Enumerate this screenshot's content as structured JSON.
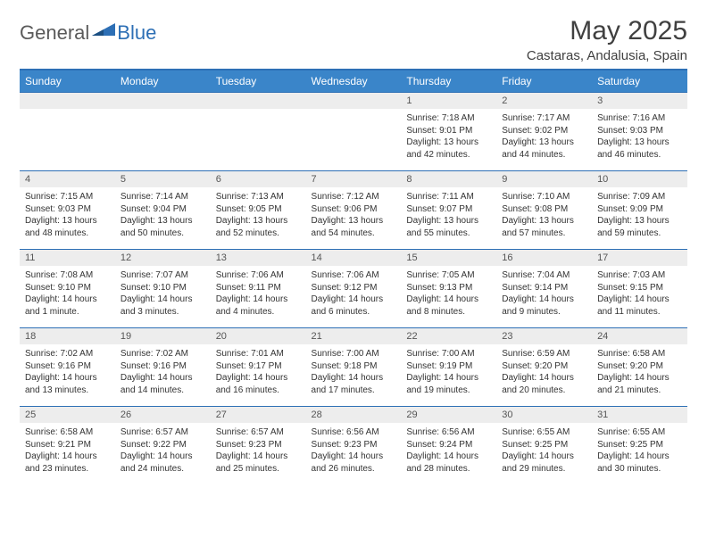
{
  "logo": {
    "general": "General",
    "blue": "Blue"
  },
  "title": "May 2025",
  "location": "Castaras, Andalusia, Spain",
  "header_bg": "#3a85c9",
  "border_color": "#2d6fb5",
  "daynum_bg": "#ededed",
  "weekdays": [
    "Sunday",
    "Monday",
    "Tuesday",
    "Wednesday",
    "Thursday",
    "Friday",
    "Saturday"
  ],
  "first_day_index": 4,
  "days": [
    {
      "n": "1",
      "sr": "Sunrise: 7:18 AM",
      "ss": "Sunset: 9:01 PM",
      "dl1": "Daylight: 13 hours",
      "dl2": "and 42 minutes."
    },
    {
      "n": "2",
      "sr": "Sunrise: 7:17 AM",
      "ss": "Sunset: 9:02 PM",
      "dl1": "Daylight: 13 hours",
      "dl2": "and 44 minutes."
    },
    {
      "n": "3",
      "sr": "Sunrise: 7:16 AM",
      "ss": "Sunset: 9:03 PM",
      "dl1": "Daylight: 13 hours",
      "dl2": "and 46 minutes."
    },
    {
      "n": "4",
      "sr": "Sunrise: 7:15 AM",
      "ss": "Sunset: 9:03 PM",
      "dl1": "Daylight: 13 hours",
      "dl2": "and 48 minutes."
    },
    {
      "n": "5",
      "sr": "Sunrise: 7:14 AM",
      "ss": "Sunset: 9:04 PM",
      "dl1": "Daylight: 13 hours",
      "dl2": "and 50 minutes."
    },
    {
      "n": "6",
      "sr": "Sunrise: 7:13 AM",
      "ss": "Sunset: 9:05 PM",
      "dl1": "Daylight: 13 hours",
      "dl2": "and 52 minutes."
    },
    {
      "n": "7",
      "sr": "Sunrise: 7:12 AM",
      "ss": "Sunset: 9:06 PM",
      "dl1": "Daylight: 13 hours",
      "dl2": "and 54 minutes."
    },
    {
      "n": "8",
      "sr": "Sunrise: 7:11 AM",
      "ss": "Sunset: 9:07 PM",
      "dl1": "Daylight: 13 hours",
      "dl2": "and 55 minutes."
    },
    {
      "n": "9",
      "sr": "Sunrise: 7:10 AM",
      "ss": "Sunset: 9:08 PM",
      "dl1": "Daylight: 13 hours",
      "dl2": "and 57 minutes."
    },
    {
      "n": "10",
      "sr": "Sunrise: 7:09 AM",
      "ss": "Sunset: 9:09 PM",
      "dl1": "Daylight: 13 hours",
      "dl2": "and 59 minutes."
    },
    {
      "n": "11",
      "sr": "Sunrise: 7:08 AM",
      "ss": "Sunset: 9:10 PM",
      "dl1": "Daylight: 14 hours",
      "dl2": "and 1 minute."
    },
    {
      "n": "12",
      "sr": "Sunrise: 7:07 AM",
      "ss": "Sunset: 9:10 PM",
      "dl1": "Daylight: 14 hours",
      "dl2": "and 3 minutes."
    },
    {
      "n": "13",
      "sr": "Sunrise: 7:06 AM",
      "ss": "Sunset: 9:11 PM",
      "dl1": "Daylight: 14 hours",
      "dl2": "and 4 minutes."
    },
    {
      "n": "14",
      "sr": "Sunrise: 7:06 AM",
      "ss": "Sunset: 9:12 PM",
      "dl1": "Daylight: 14 hours",
      "dl2": "and 6 minutes."
    },
    {
      "n": "15",
      "sr": "Sunrise: 7:05 AM",
      "ss": "Sunset: 9:13 PM",
      "dl1": "Daylight: 14 hours",
      "dl2": "and 8 minutes."
    },
    {
      "n": "16",
      "sr": "Sunrise: 7:04 AM",
      "ss": "Sunset: 9:14 PM",
      "dl1": "Daylight: 14 hours",
      "dl2": "and 9 minutes."
    },
    {
      "n": "17",
      "sr": "Sunrise: 7:03 AM",
      "ss": "Sunset: 9:15 PM",
      "dl1": "Daylight: 14 hours",
      "dl2": "and 11 minutes."
    },
    {
      "n": "18",
      "sr": "Sunrise: 7:02 AM",
      "ss": "Sunset: 9:16 PM",
      "dl1": "Daylight: 14 hours",
      "dl2": "and 13 minutes."
    },
    {
      "n": "19",
      "sr": "Sunrise: 7:02 AM",
      "ss": "Sunset: 9:16 PM",
      "dl1": "Daylight: 14 hours",
      "dl2": "and 14 minutes."
    },
    {
      "n": "20",
      "sr": "Sunrise: 7:01 AM",
      "ss": "Sunset: 9:17 PM",
      "dl1": "Daylight: 14 hours",
      "dl2": "and 16 minutes."
    },
    {
      "n": "21",
      "sr": "Sunrise: 7:00 AM",
      "ss": "Sunset: 9:18 PM",
      "dl1": "Daylight: 14 hours",
      "dl2": "and 17 minutes."
    },
    {
      "n": "22",
      "sr": "Sunrise: 7:00 AM",
      "ss": "Sunset: 9:19 PM",
      "dl1": "Daylight: 14 hours",
      "dl2": "and 19 minutes."
    },
    {
      "n": "23",
      "sr": "Sunrise: 6:59 AM",
      "ss": "Sunset: 9:20 PM",
      "dl1": "Daylight: 14 hours",
      "dl2": "and 20 minutes."
    },
    {
      "n": "24",
      "sr": "Sunrise: 6:58 AM",
      "ss": "Sunset: 9:20 PM",
      "dl1": "Daylight: 14 hours",
      "dl2": "and 21 minutes."
    },
    {
      "n": "25",
      "sr": "Sunrise: 6:58 AM",
      "ss": "Sunset: 9:21 PM",
      "dl1": "Daylight: 14 hours",
      "dl2": "and 23 minutes."
    },
    {
      "n": "26",
      "sr": "Sunrise: 6:57 AM",
      "ss": "Sunset: 9:22 PM",
      "dl1": "Daylight: 14 hours",
      "dl2": "and 24 minutes."
    },
    {
      "n": "27",
      "sr": "Sunrise: 6:57 AM",
      "ss": "Sunset: 9:23 PM",
      "dl1": "Daylight: 14 hours",
      "dl2": "and 25 minutes."
    },
    {
      "n": "28",
      "sr": "Sunrise: 6:56 AM",
      "ss": "Sunset: 9:23 PM",
      "dl1": "Daylight: 14 hours",
      "dl2": "and 26 minutes."
    },
    {
      "n": "29",
      "sr": "Sunrise: 6:56 AM",
      "ss": "Sunset: 9:24 PM",
      "dl1": "Daylight: 14 hours",
      "dl2": "and 28 minutes."
    },
    {
      "n": "30",
      "sr": "Sunrise: 6:55 AM",
      "ss": "Sunset: 9:25 PM",
      "dl1": "Daylight: 14 hours",
      "dl2": "and 29 minutes."
    },
    {
      "n": "31",
      "sr": "Sunrise: 6:55 AM",
      "ss": "Sunset: 9:25 PM",
      "dl1": "Daylight: 14 hours",
      "dl2": "and 30 minutes."
    }
  ]
}
